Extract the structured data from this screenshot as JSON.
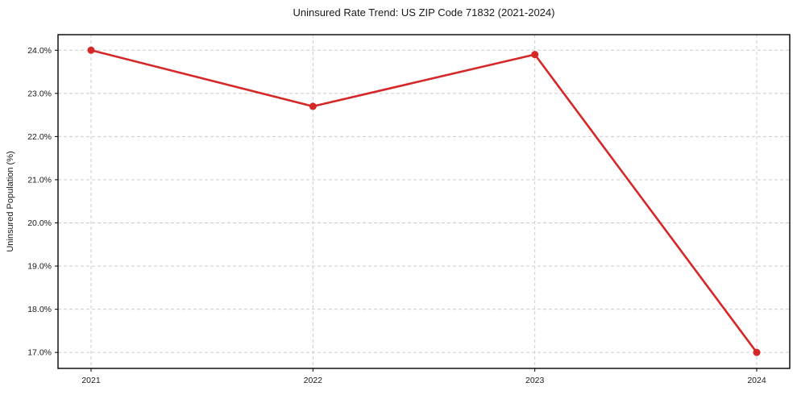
{
  "chart_data": {
    "type": "line",
    "title": "Uninsured Rate Trend: US ZIP Code 71832 (2021-2024)",
    "xlabel": "",
    "ylabel": "Uninsured Population (%)",
    "categories": [
      "2021",
      "2022",
      "2023",
      "2024"
    ],
    "series": [
      {
        "name": "Uninsured rate",
        "values": [
          24.0,
          22.7,
          23.9,
          17.0
        ],
        "color": "#d62728",
        "marker": "circle"
      }
    ],
    "yticks": [
      {
        "value": 17.0,
        "label": "17.0%"
      },
      {
        "value": 18.0,
        "label": "18.0%"
      },
      {
        "value": 19.0,
        "label": "19.0%"
      },
      {
        "value": 20.0,
        "label": "20.0%"
      },
      {
        "value": 21.0,
        "label": "21.0%"
      },
      {
        "value": 22.0,
        "label": "22.0%"
      },
      {
        "value": 23.0,
        "label": "23.0%"
      },
      {
        "value": 24.0,
        "label": "24.0%"
      }
    ],
    "ylim": [
      16.63,
      24.36
    ],
    "grid": "dashed",
    "legend": "none",
    "colors": {
      "grid": "#cccccc",
      "spine": "#000000",
      "text": "#1a1a1a",
      "background": "#ffffff"
    }
  }
}
